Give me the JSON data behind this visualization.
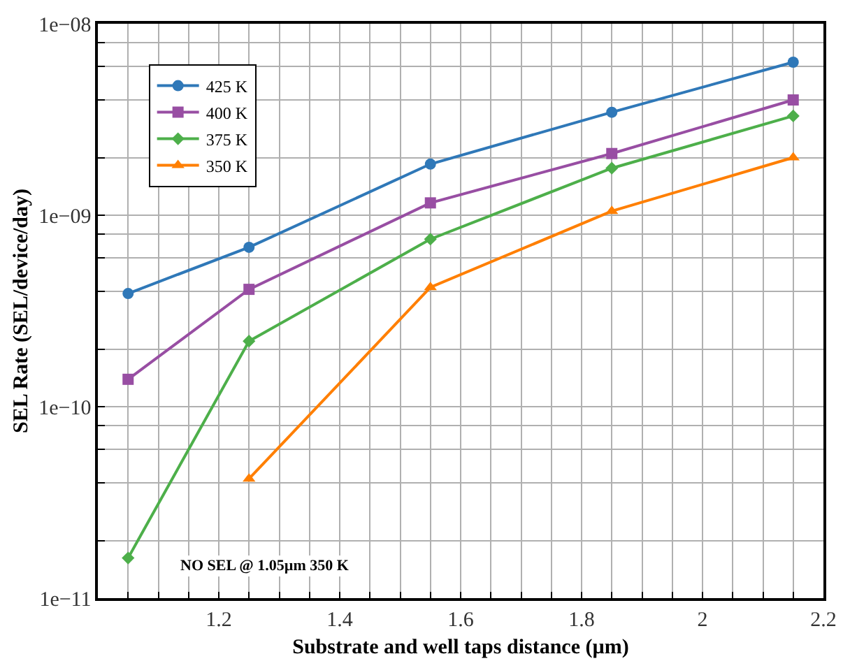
{
  "chart_data": {
    "type": "line",
    "xlabel": "Substrate and well taps distance (µm)",
    "ylabel": "SEL Rate (SEL/device/day)",
    "x": [
      1.05,
      1.25,
      1.55,
      1.85,
      2.15
    ],
    "series": [
      {
        "name": "425 K",
        "color": "#2f78b8",
        "marker": "circle",
        "values": [
          3.9e-10,
          6.8e-10,
          1.85e-09,
          3.45e-09,
          6.3e-09
        ]
      },
      {
        "name": "400 K",
        "color": "#984ea3",
        "marker": "square",
        "values": [
          1.39e-10,
          4.1e-10,
          1.16e-09,
          2.1e-09,
          4e-09
        ]
      },
      {
        "name": "375 K",
        "color": "#4daf4a",
        "marker": "diamond",
        "values": [
          1.62e-11,
          2.2e-10,
          7.5e-10,
          1.76e-09,
          3.3e-09
        ]
      },
      {
        "name": "350 K",
        "color": "#ff7f00",
        "marker": "triangle",
        "values": [
          null,
          4.2e-11,
          4.2e-10,
          1.05e-09,
          2e-09
        ]
      }
    ],
    "log": "y",
    "grid": true,
    "legend": "top left",
    "line_style": "solid",
    "xlim": [
      1.0,
      2.2
    ],
    "xticks": [
      {
        "value": 1.05,
        "label": null
      },
      {
        "value": 1.1,
        "label": null
      },
      {
        "value": 1.15,
        "label": null
      },
      1.2,
      {
        "value": 1.25,
        "label": null
      },
      {
        "value": 1.3,
        "label": null
      },
      {
        "value": 1.35,
        "label": null
      },
      1.4,
      {
        "value": 1.45,
        "label": null
      },
      {
        "value": 1.5,
        "label": null
      },
      {
        "value": 1.55,
        "label": null
      },
      1.6,
      {
        "value": 1.65,
        "label": null
      },
      {
        "value": 1.7,
        "label": null
      },
      {
        "value": 1.75,
        "label": null
      },
      1.8,
      {
        "value": 1.85,
        "label": null
      },
      {
        "value": 1.9,
        "label": null
      },
      {
        "value": 1.95,
        "label": null
      },
      2,
      {
        "value": 2.05,
        "label": null
      },
      {
        "value": 2.1,
        "label": null
      },
      {
        "value": 2.15,
        "label": null
      },
      2.2
    ],
    "ylim": [
      1e-11,
      1e-08
    ],
    "yticks": [
      {
        "value": 1e-11,
        "label": "1e−11"
      },
      {
        "value": 2e-11,
        "label": null
      },
      {
        "value": 4e-11,
        "label": null
      },
      {
        "value": 6e-11,
        "label": null
      },
      {
        "value": 8e-11,
        "label": null
      },
      {
        "value": 1e-10,
        "label": "1e−10"
      },
      {
        "value": 2e-10,
        "label": null
      },
      {
        "value": 4e-10,
        "label": null
      },
      {
        "value": 6e-10,
        "label": null
      },
      {
        "value": 8e-10,
        "label": null
      },
      {
        "value": 1e-09,
        "label": "1e−09"
      },
      {
        "value": 2e-09,
        "label": null
      },
      {
        "value": 4e-09,
        "label": null
      },
      {
        "value": 6e-09,
        "label": null
      },
      {
        "value": 8e-09,
        "label": null
      },
      {
        "value": 1e-08,
        "label": "1e−08"
      }
    ],
    "annotations": [
      "NO SEL @ 1.05µm 350 K"
    ]
  }
}
